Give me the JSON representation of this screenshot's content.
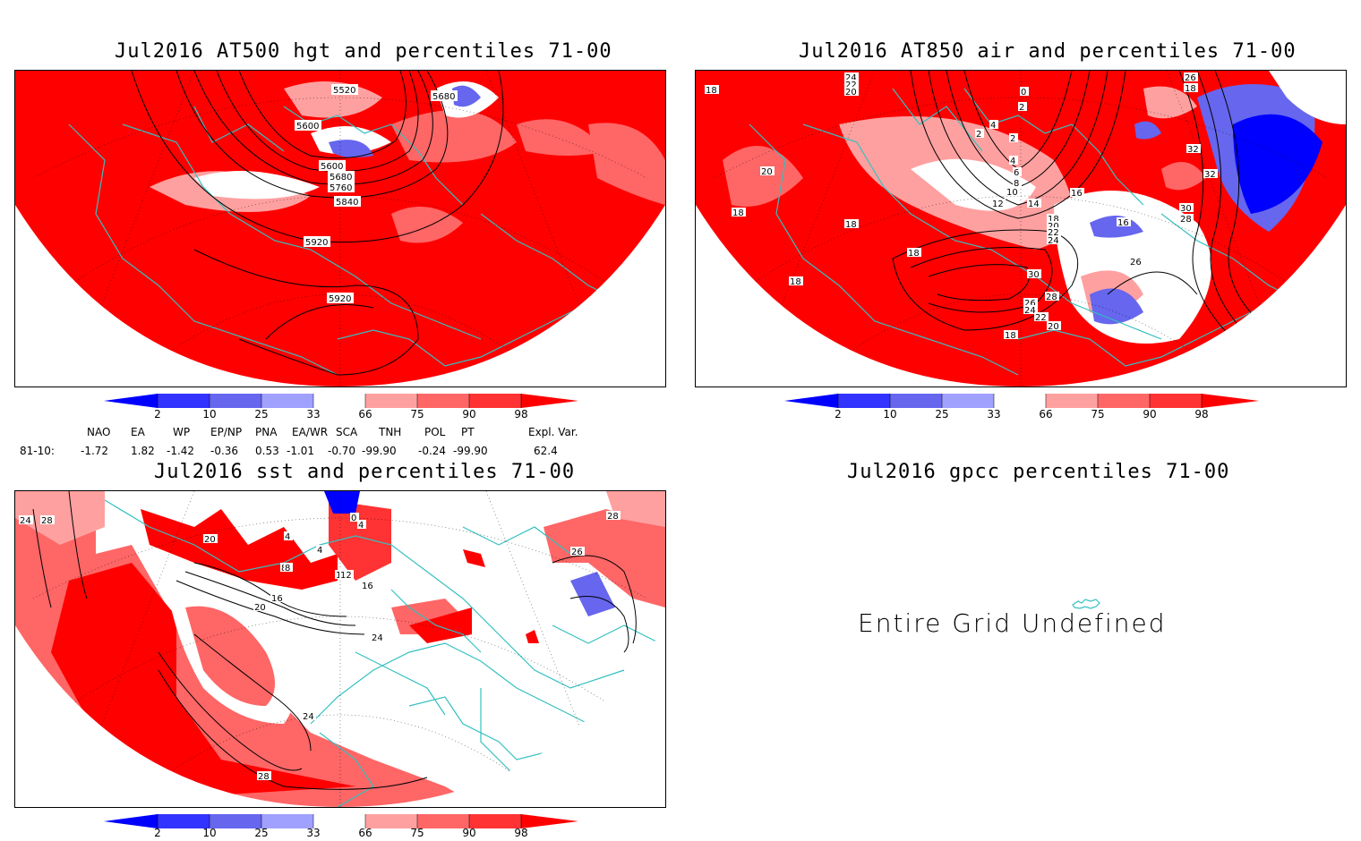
{
  "panels": {
    "p1": {
      "title": "Jul2016 AT500 hgt and percentiles 71-00",
      "contour_labels": [
        "5520",
        "5680",
        "5600",
        "5600",
        "5680",
        "5760",
        "5840",
        "5920",
        "5920"
      ]
    },
    "p2": {
      "title": "Jul2016 AT850 air and percentiles 71-00",
      "contour_labels": [
        "24",
        "22",
        "20",
        "18",
        "0",
        "2",
        "2",
        "4",
        "2",
        "4",
        "6",
        "8",
        "10",
        "12",
        "14",
        "16",
        "18",
        "20",
        "22",
        "24",
        "26",
        "28",
        "30",
        "26",
        "24",
        "22",
        "20",
        "18",
        "18",
        "18",
        "18",
        "18",
        "20",
        "26",
        "26",
        "18",
        "16",
        "32",
        "32",
        "30",
        "28"
      ]
    },
    "p3": {
      "title": "Jul2016 sst and percentiles 71-00",
      "contour_labels": [
        "24",
        "28",
        "20",
        "8",
        "4",
        "12",
        "16",
        "20",
        "24",
        "24",
        "28",
        "28",
        "26",
        "0",
        "4",
        "4",
        "8",
        "12",
        "16"
      ]
    },
    "p4": {
      "title": "Jul2016 gpcc percentiles 71-00",
      "message": "Entire Grid Undefined"
    }
  },
  "colorbar": {
    "labels": [
      "2",
      "10",
      "25",
      "33",
      "66",
      "75",
      "90",
      "98"
    ],
    "colors": {
      "c2": "#0000ff",
      "c10": "#3333ff",
      "c25": "#6666ee",
      "c33": "#a0a0ff",
      "c66": "#ffa0a0",
      "c75": "#ff6666",
      "c90": "#ff3333",
      "c98": "#ff0000"
    }
  },
  "indices": {
    "headers": [
      "NAO",
      "EA",
      "WP",
      "EP/NP",
      "PNA",
      "EA/WR",
      "SCA",
      "TNH",
      "POL",
      "PT",
      "Expl. Var."
    ],
    "row_label": "81-10:",
    "values": [
      "-1.72",
      "1.82",
      "-1.42",
      "-0.36",
      "0.53",
      "-1.01",
      "-0.70",
      "-99.90",
      "-0.24",
      "-99.90",
      "62.4"
    ]
  },
  "map_colors": {
    "land": "#35c0c0",
    "warm": "#ff0000",
    "warm2": "#ff6666",
    "warm3": "#ffa0a0",
    "cool": "#a0a0ff",
    "cool2": "#6666ee",
    "cold": "#0000ff"
  }
}
